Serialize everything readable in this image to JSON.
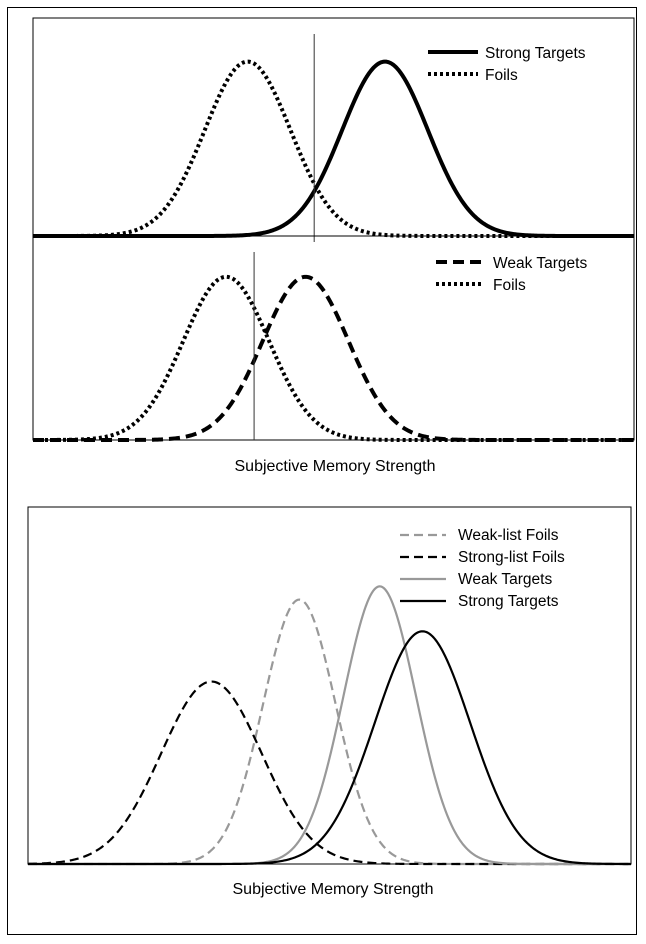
{
  "figure": {
    "bottom_xlabel_top": "Subjective Memory Strength",
    "bottom_xlabel_bottom": "Subjective Memory Strength"
  },
  "chart_data": [
    {
      "type": "line",
      "title": "",
      "xlabel": "",
      "ylabel": "",
      "xlim": [
        -5,
        9
      ],
      "ylim": [
        0,
        1.25
      ],
      "grid": false,
      "legend": "top-right",
      "criterion": 1.55,
      "series": [
        {
          "name": "Strong Targets",
          "mean": 3.2,
          "sd": 1.0,
          "style": "solid",
          "color": "#000000",
          "peak": 1.0
        },
        {
          "name": "Foils",
          "mean": 0.0,
          "sd": 1.0,
          "style": "dotted",
          "color": "#000000",
          "peak": 1.0
        }
      ]
    },
    {
      "type": "line",
      "title": "",
      "xlabel": "Subjective Memory Strength",
      "ylabel": "",
      "xlim": [
        -4.5,
        9.5
      ],
      "ylim": [
        0,
        1.25
      ],
      "grid": false,
      "legend": "top-right",
      "criterion": 0.65,
      "series": [
        {
          "name": "Weak Targets",
          "mean": 1.85,
          "sd": 1.0,
          "style": "dashed",
          "color": "#000000",
          "peak": 1.0
        },
        {
          "name": "Foils",
          "mean": 0.0,
          "sd": 1.0,
          "style": "dotted",
          "color": "#000000",
          "peak": 1.0
        }
      ]
    },
    {
      "type": "line",
      "title": "",
      "xlabel": "Subjective Memory Strength",
      "ylabel": "",
      "xlim": [
        -2,
        10
      ],
      "ylim": [
        0,
        1.35
      ],
      "grid": false,
      "legend": "top-right",
      "series": [
        {
          "name": "Weak-list Foils",
          "mean": 3.4,
          "sd": 0.72,
          "style": "dashed",
          "color": "#999999",
          "peak": 1.0
        },
        {
          "name": "Strong-list Foils",
          "mean": 1.65,
          "sd": 1.0,
          "style": "dashed",
          "color": "#000000",
          "peak": 0.69
        },
        {
          "name": "Weak Targets",
          "mean": 5.0,
          "sd": 0.72,
          "style": "solid",
          "color": "#999999",
          "peak": 1.05
        },
        {
          "name": "Strong Targets",
          "mean": 5.85,
          "sd": 0.95,
          "style": "solid",
          "color": "#000000",
          "peak": 0.88
        }
      ]
    }
  ]
}
